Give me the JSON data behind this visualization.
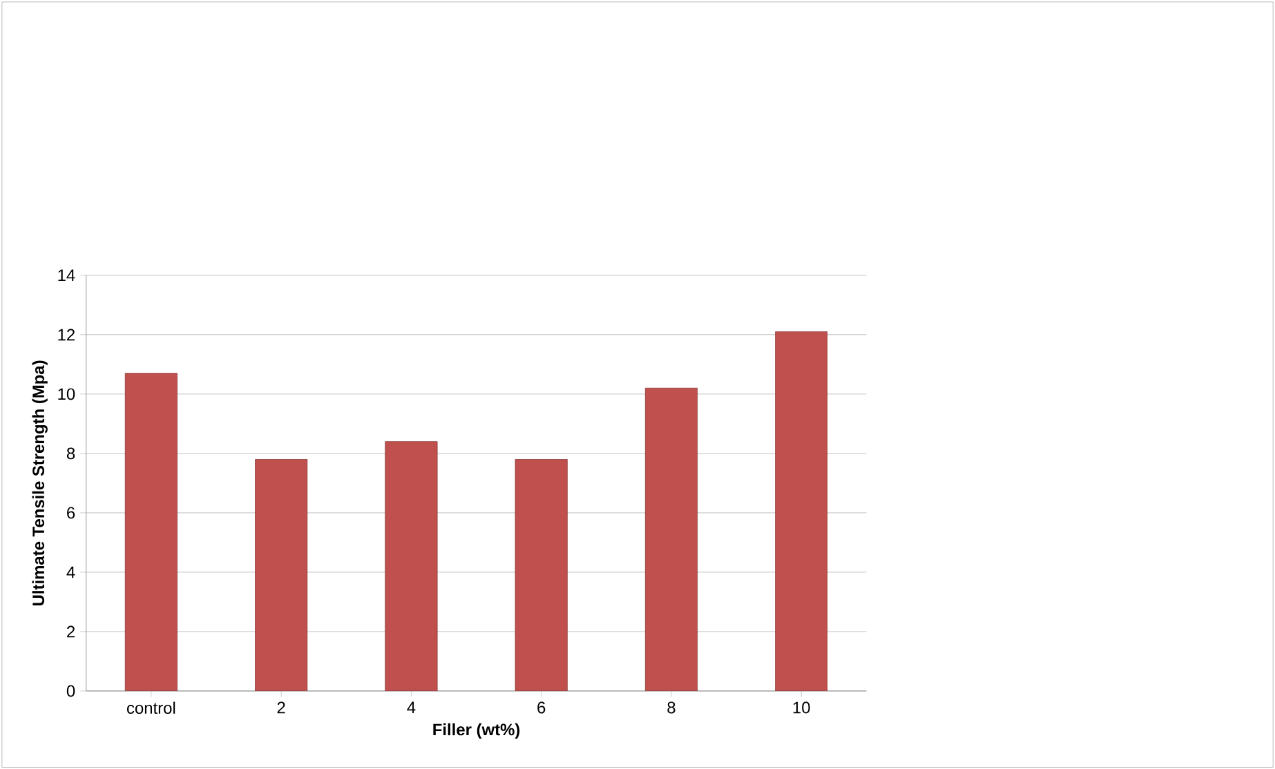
{
  "chart_data": {
    "type": "bar",
    "xlabel": "Filler (wt%)",
    "ylabel": "Ultimate Tensile Strength (Mpa)",
    "categories": [
      "control",
      "2",
      "4",
      "6",
      "8",
      "10"
    ],
    "values": [
      10.7,
      7.8,
      8.4,
      7.8,
      10.2,
      12.1
    ],
    "color": "#c0504d",
    "ylim": [
      0,
      14
    ],
    "yticks": [
      0,
      2,
      4,
      6,
      8,
      10,
      12,
      14
    ],
    "grid": "y"
  }
}
